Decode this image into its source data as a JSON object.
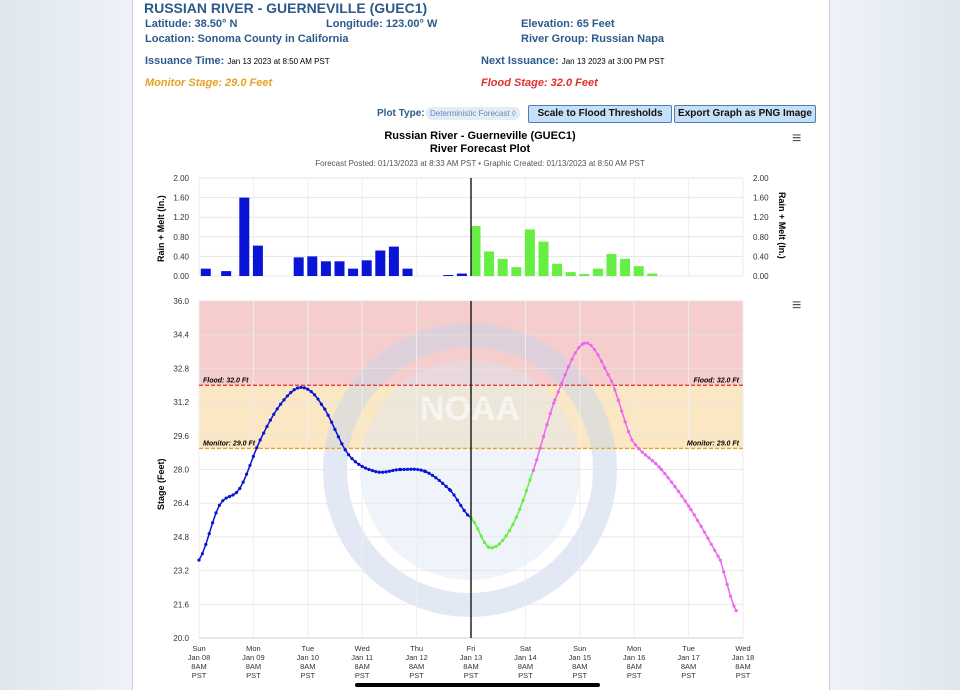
{
  "header": {
    "title": "RUSSIAN RIVER - GUERNEVILLE (GUEC1)",
    "latitude": "Latitude: 38.50° N",
    "longitude": "Longitude: 123.00° W",
    "elevation": "Elevation: 65 Feet",
    "location": "Location: Sonoma County in California",
    "river_group": "River Group: Russian Napa",
    "issuance_label": "Issuance Time:",
    "issuance_value": "Jan 13 2023 at 8:50 AM PST",
    "next_label": "Next Issuance:",
    "next_value": "Jan 13 2023 at 3:00 PM PST",
    "monitor_stage": "Monitor Stage: 29.0 Feet",
    "flood_stage": "Flood Stage: 32.0 Feet"
  },
  "controls": {
    "plot_type_label": "Plot Type:",
    "plot_type_value": "Deterministic Forecast ◊",
    "scale_button": "Scale to Flood Thresholds",
    "export_button": "Export Graph as PNG Image"
  },
  "colors": {
    "observed": "#0a14d6",
    "forecast_rain": "#66ee44",
    "forecast_stage": "#ee66ee",
    "flood": "#e03030",
    "monitor": "#e8a020"
  },
  "chart_data": [
    {
      "type": "bar",
      "title": "Russian River - Guerneville (GUEC1)",
      "subtitle": "River Forecast Plot",
      "posted": "Forecast Posted: 01/13/2023 at 8:33 AM PST • Graphic Created: 01/13/2023 at 8:50 AM PST",
      "ylabel": "Rain + Melt (In.)",
      "ylim": [
        0,
        2
      ],
      "yticks": [
        "0.00",
        "0.40",
        "0.80",
        "1.20",
        "1.60",
        "2.00"
      ],
      "x_unit": "hours since Jan 08 8AM PST",
      "observed": [
        [
          1,
          0.15
        ],
        [
          10,
          0.1
        ],
        [
          18,
          1.6
        ],
        [
          24,
          0.62
        ],
        [
          42,
          0.38
        ],
        [
          48,
          0.4
        ],
        [
          54,
          0.3
        ],
        [
          60,
          0.3
        ],
        [
          66,
          0.15
        ],
        [
          72,
          0.32
        ],
        [
          78,
          0.52
        ],
        [
          84,
          0.6
        ],
        [
          90,
          0.15
        ],
        [
          108,
          0.02
        ],
        [
          114,
          0.05
        ]
      ],
      "forecast": [
        [
          120,
          1.02
        ],
        [
          126,
          0.5
        ],
        [
          132,
          0.35
        ],
        [
          138,
          0.18
        ],
        [
          144,
          0.95
        ],
        [
          150,
          0.7
        ],
        [
          156,
          0.25
        ],
        [
          162,
          0.08
        ],
        [
          168,
          0.04
        ],
        [
          174,
          0.15
        ],
        [
          180,
          0.45
        ],
        [
          186,
          0.35
        ],
        [
          192,
          0.2
        ],
        [
          198,
          0.05
        ]
      ]
    },
    {
      "type": "line",
      "ylabel": "Stage (Feet)",
      "ylim": [
        20,
        36
      ],
      "yticks": [
        "20.0",
        "21.6",
        "23.2",
        "24.8",
        "26.4",
        "28.0",
        "29.6",
        "31.2",
        "32.8",
        "34.4",
        "36.0"
      ],
      "flood_stage": 32.0,
      "monitor_stage": 29.0,
      "flood_label": "Flood: 32.0 Ft",
      "monitor_label": "Monitor: 29.0 Ft",
      "xticks": [
        [
          "Sun",
          "Jan 08",
          "8AM",
          "PST"
        ],
        [
          "Mon",
          "Jan 09",
          "8AM",
          "PST"
        ],
        [
          "Tue",
          "Jan 10",
          "8AM",
          "PST"
        ],
        [
          "Wed",
          "Jan 11",
          "8AM",
          "PST"
        ],
        [
          "Thu",
          "Jan 12",
          "8AM",
          "PST"
        ],
        [
          "Fri",
          "Jan 13",
          "8AM",
          "PST"
        ],
        [
          "Sat",
          "Jan 14",
          "8AM",
          "PST"
        ],
        [
          "Sun",
          "Jan 15",
          "8AM",
          "PST"
        ],
        [
          "Mon",
          "Jan 16",
          "8AM",
          "PST"
        ],
        [
          "Tue",
          "Jan 17",
          "8AM",
          "PST"
        ],
        [
          "Wed",
          "Jan 18",
          "8AM",
          "PST"
        ]
      ],
      "now_hour": 120,
      "observed": [
        [
          0,
          23.7
        ],
        [
          9,
          26.3
        ],
        [
          18,
          27.1
        ],
        [
          27,
          29.4
        ],
        [
          36,
          31.1
        ],
        [
          45,
          31.9
        ],
        [
          54,
          31.1
        ],
        [
          66,
          28.7
        ],
        [
          78,
          27.9
        ],
        [
          89,
          28.0
        ],
        [
          100,
          27.9
        ],
        [
          111,
          27.0
        ],
        [
          120,
          25.7
        ]
      ],
      "forecast": [
        [
          120,
          25.7
        ],
        [
          128,
          24.3
        ],
        [
          137,
          25.1
        ],
        [
          146,
          27.5
        ],
        [
          157,
          31.3
        ],
        [
          170,
          34.0
        ],
        [
          182,
          32.2
        ],
        [
          191,
          29.4
        ],
        [
          204,
          28.0
        ],
        [
          217,
          26.1
        ],
        [
          230,
          23.7
        ],
        [
          237,
          21.3
        ]
      ],
      "forecast_green_until": 146
    }
  ]
}
